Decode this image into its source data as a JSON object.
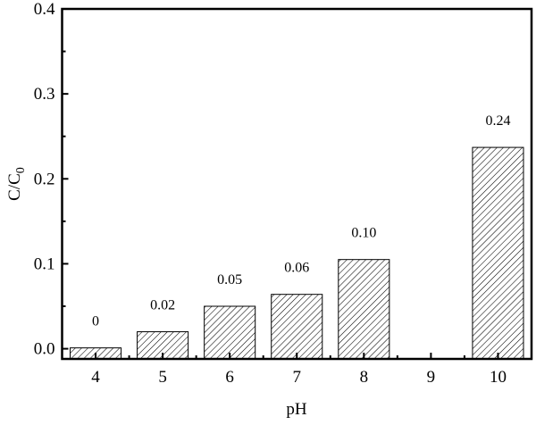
{
  "chart_data": {
    "type": "bar",
    "title": "",
    "xlabel": "pH",
    "ylabel_main": "C/C",
    "ylabel_sub": "0",
    "categories": [
      "4",
      "5",
      "6",
      "7",
      "8",
      "9",
      "10"
    ],
    "x": [
      4,
      5,
      6,
      7,
      8,
      10
    ],
    "values": [
      0.001,
      0.02,
      0.05,
      0.064,
      0.105,
      0.237
    ],
    "data_labels": [
      "0",
      "0.02",
      "0.05",
      "0.06",
      "0.10",
      "0.24"
    ],
    "xlim": [
      3.5,
      10.5
    ],
    "ylim": [
      -0.012,
      0.4
    ],
    "yticks": [
      "0.0",
      "0.1",
      "0.2",
      "0.3",
      "0.4"
    ],
    "ytick_values": [
      0,
      0.1,
      0.2,
      0.3,
      0.4
    ],
    "bar_pattern": "diagonal-hatch",
    "bar_color": "#ffffff",
    "edge_color": "#000000",
    "grid": false,
    "legend": "none"
  }
}
